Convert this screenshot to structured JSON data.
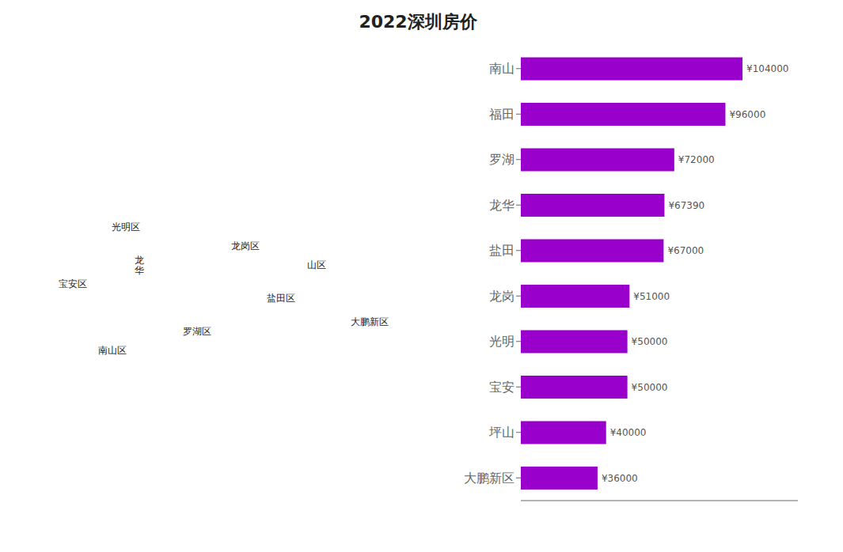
{
  "chart_data": {
    "type": "bar",
    "title": "2022深圳房价",
    "orientation": "horizontal",
    "categories": [
      "南山",
      "福田",
      "罗湖",
      "龙华",
      "盐田",
      "龙岗",
      "光明",
      "宝安",
      "坪山",
      "大鹏新区"
    ],
    "values": [
      104000,
      96000,
      72000,
      67390,
      67000,
      51000,
      50000,
      50000,
      40000,
      36000
    ],
    "value_labels": [
      "¥104000",
      "¥96000",
      "¥72000",
      "¥67390",
      "¥67000",
      "¥51000",
      "¥50000",
      "¥50000",
      "¥40000",
      "¥36000"
    ],
    "data_labels": true,
    "color": "#9900cc",
    "xlim": [
      0,
      130000
    ],
    "grid": false,
    "tick_labels": "y",
    "annotations": [
      "宝安区",
      "光明区",
      "龙\n华",
      "龙岗区",
      "盐田区",
      "罗湖区",
      "南山区",
      "大鹏新区",
      "山区"
    ]
  }
}
